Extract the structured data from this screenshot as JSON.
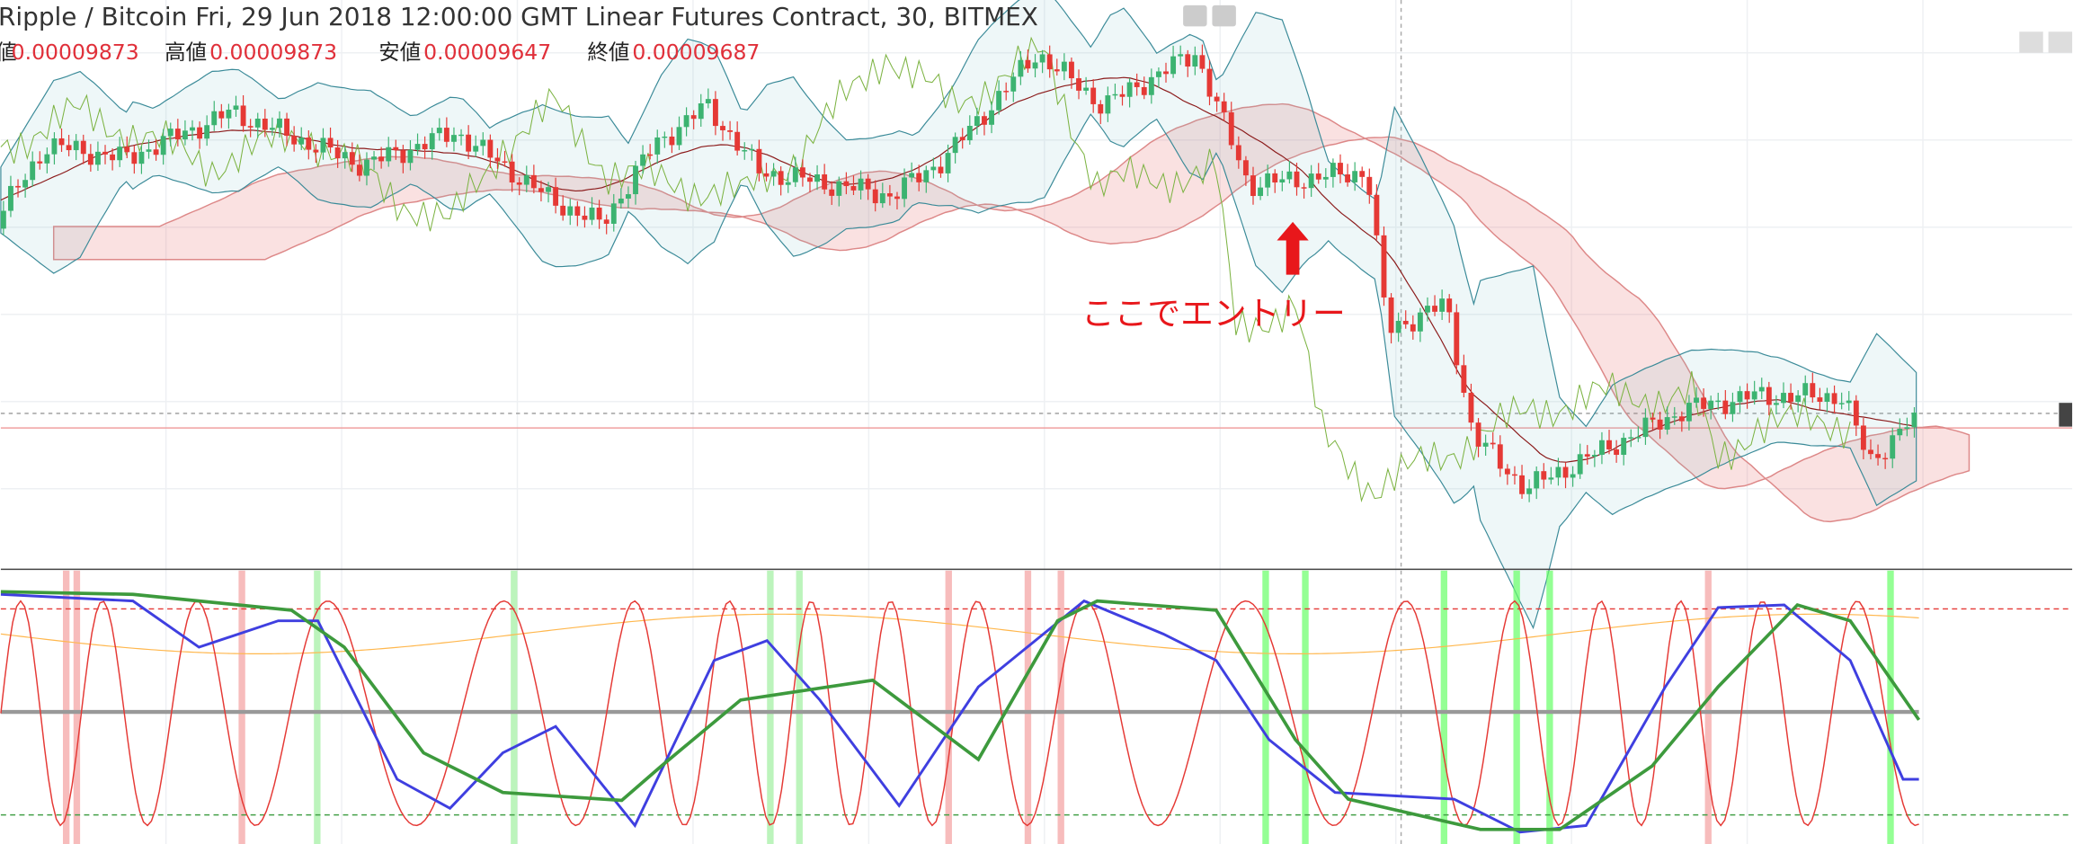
{
  "header": {
    "title": "Ripple / Bitcoin Fri, 29 Jun 2018 12:00:00 GMT Linear Futures Contract, 30, BITMEX",
    "ohlc": [
      {
        "label": "値",
        "value": "0.00009873"
      },
      {
        "label": "高値",
        "value": "0.00009873"
      },
      {
        "label": "安値",
        "value": "0.00009647"
      },
      {
        "label": "終値",
        "value": "0.00009687"
      }
    ]
  },
  "annotation": "ここでエントリー"
}
